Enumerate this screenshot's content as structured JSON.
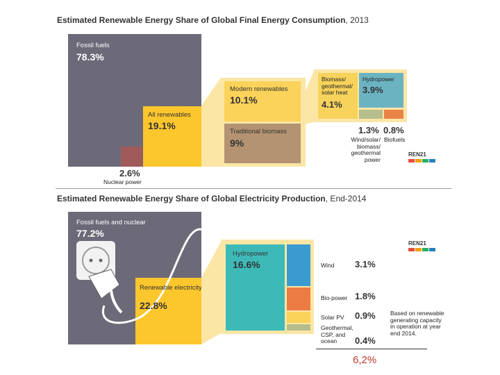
{
  "colors": {
    "fossil": "#6c6a78",
    "renewables": "#fcc62d",
    "modern": "#fbd25a",
    "biomass_trad": "#b39372",
    "biomass_heat": "#f7d35c",
    "hydro": "#6cb3c2",
    "wind_solar": "#b5be8c",
    "biofuels": "#ec8346",
    "nuclear": "#a15a5a",
    "hydro2": "#3dbab8",
    "wind2": "#3a9bd1",
    "bio2": "#ec7b44",
    "solar2": "#fbd25a",
    "geo2": "#b5be8c",
    "frame": "#fbe6a6",
    "accent_red": "#c0392b"
  },
  "chart_data": [
    {
      "type": "treemap",
      "title_bold": "Estimated Renewable Energy Share of Global Final Energy Consumption",
      "title_rest": ", 2013",
      "items": [
        {
          "label": "Fossil fuels",
          "value": "78.3%"
        },
        {
          "label": "All renewables",
          "value": "19.1%"
        },
        {
          "label": "Nuclear power",
          "value": "2.6%"
        },
        {
          "label": "Modern renewables",
          "value": "10.1%"
        },
        {
          "label": "Traditional biomass",
          "value": "9%"
        },
        {
          "label": "Biomass/ geothermal/ solar heat",
          "value": "4.1%"
        },
        {
          "label": "Hydropower",
          "value": "3.9%"
        },
        {
          "label": "Wind/solar/ biomass/ geothermal power",
          "value": "1.3%"
        },
        {
          "label": "Biofuels",
          "value": "0.8%"
        }
      ]
    },
    {
      "type": "treemap",
      "title_bold": "Estimated Renewable Energy Share of Global Electricity Production",
      "title_rest": ", End-2014",
      "items": [
        {
          "label": "Fossil fuels and nuclear",
          "value": "77.2%"
        },
        {
          "label": "Renewable electricity",
          "value": "22.8%"
        },
        {
          "label": "Hydropower",
          "value": "16.6%"
        },
        {
          "label": "Wind",
          "value": "3.1%"
        },
        {
          "label": "Bio-power",
          "value": "1.8%"
        },
        {
          "label": "Solar PV",
          "value": "0.9%"
        },
        {
          "label": "Geothermal, CSP, and ocean",
          "value": "0.4%"
        }
      ],
      "note": "Based on renewable generating capacity in operation at year end 2014.",
      "extra": "6,2%"
    }
  ],
  "logo": "REN21"
}
